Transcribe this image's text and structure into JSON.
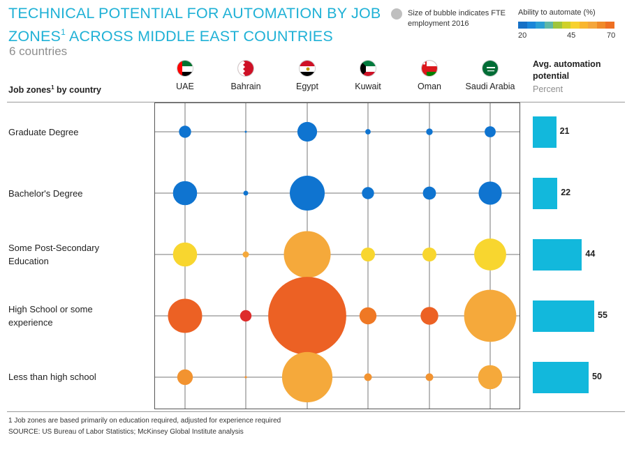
{
  "header": {
    "title_part1": "TECHNICAL POTENTIAL FOR AUTOMATION BY JOB ZONES",
    "title_sup": "1",
    "title_part2": " ACROSS MIDDLE EAST COUNTRIES",
    "subtitle": "6 countries"
  },
  "legend": {
    "bubble_size_text": "Size of bubble indicates FTE employment 2016",
    "color_title": "Ability to automate (%)",
    "color_ticks": [
      "20",
      "45",
      "70"
    ],
    "color_scale": [
      "#1570c6",
      "#1a86d9",
      "#2b9fd4",
      "#5fb8a6",
      "#9fc53c",
      "#cfd12a",
      "#f7d12e",
      "#f9b62e",
      "#f5a63a",
      "#f08a28",
      "#ee6f22",
      "#e8522a",
      "#d9302a",
      "#c41a1e"
    ]
  },
  "table": {
    "rows_header": "Job zones",
    "rows_header_sup": "1",
    "rows_header_suffix": " by country",
    "avg_header": "Avg. automation potential",
    "avg_unit": "Percent"
  },
  "countries": [
    {
      "name": "UAE",
      "flag": "uae-flag-icon"
    },
    {
      "name": "Bahrain",
      "flag": "bahrain-flag-icon"
    },
    {
      "name": "Egypt",
      "flag": "egypt-flag-icon"
    },
    {
      "name": "Kuwait",
      "flag": "kuwait-flag-icon"
    },
    {
      "name": "Oman",
      "flag": "oman-flag-icon"
    },
    {
      "name": "Saudi Arabia",
      "flag": "saudi-arabia-flag-icon"
    }
  ],
  "job_zones": [
    {
      "label": "Graduate Degree",
      "avg": 21
    },
    {
      "label": "Bachelor's Degree",
      "avg": 22
    },
    {
      "label": "Some Post-Secondary Education",
      "avg": 44
    },
    {
      "label": "High School or some experience",
      "avg": 55
    },
    {
      "label": "Less than high school",
      "avg": 50
    }
  ],
  "chart_data": {
    "type": "scatter",
    "subtype": "bubble-matrix",
    "x_categories": [
      "UAE",
      "Bahrain",
      "Egypt",
      "Kuwait",
      "Oman",
      "Saudi Arabia"
    ],
    "y_categories": [
      "Graduate Degree",
      "Bachelor's Degree",
      "Some Post-Secondary Education",
      "High School or some experience",
      "Less than high school"
    ],
    "size_measure": "FTE employment 2016 (relative)",
    "color_measure": "Ability to automate (%)",
    "color_range": [
      20,
      70
    ],
    "bubbles": [
      [
        {
          "size": 3,
          "ability": 21
        },
        {
          "size": 0.05,
          "ability": 21
        },
        {
          "size": 8,
          "ability": 21
        },
        {
          "size": 0.6,
          "ability": 21
        },
        {
          "size": 0.9,
          "ability": 21
        },
        {
          "size": 2.5,
          "ability": 21
        }
      ],
      [
        {
          "size": 12,
          "ability": 22
        },
        {
          "size": 0.5,
          "ability": 22
        },
        {
          "size": 25,
          "ability": 22
        },
        {
          "size": 3,
          "ability": 22
        },
        {
          "size": 3.5,
          "ability": 22
        },
        {
          "size": 11,
          "ability": 22
        }
      ],
      [
        {
          "size": 12,
          "ability": 40
        },
        {
          "size": 0.8,
          "ability": 48
        },
        {
          "size": 45,
          "ability": 47
        },
        {
          "size": 4,
          "ability": 40
        },
        {
          "size": 4,
          "ability": 40
        },
        {
          "size": 21,
          "ability": 40
        }
      ],
      [
        {
          "size": 24,
          "ability": 57
        },
        {
          "size": 2.7,
          "ability": 63
        },
        {
          "size": 125,
          "ability": 57
        },
        {
          "size": 6,
          "ability": 53
        },
        {
          "size": 6.5,
          "ability": 57
        },
        {
          "size": 56,
          "ability": 48
        }
      ],
      [
        {
          "size": 5,
          "ability": 52
        },
        {
          "size": 0.1,
          "ability": 52
        },
        {
          "size": 52,
          "ability": 47
        },
        {
          "size": 1.2,
          "ability": 52
        },
        {
          "size": 1.2,
          "ability": 52
        },
        {
          "size": 12,
          "ability": 47
        }
      ]
    ],
    "avg_automation_potential": [
      21,
      22,
      44,
      55,
      50
    ]
  },
  "footer": {
    "footnote": "1 Job zones are based primarily on education required, adjusted for experience required",
    "source": "SOURCE: US Bureau of Labor Statistics; McKinsey Global Institute analysis"
  }
}
